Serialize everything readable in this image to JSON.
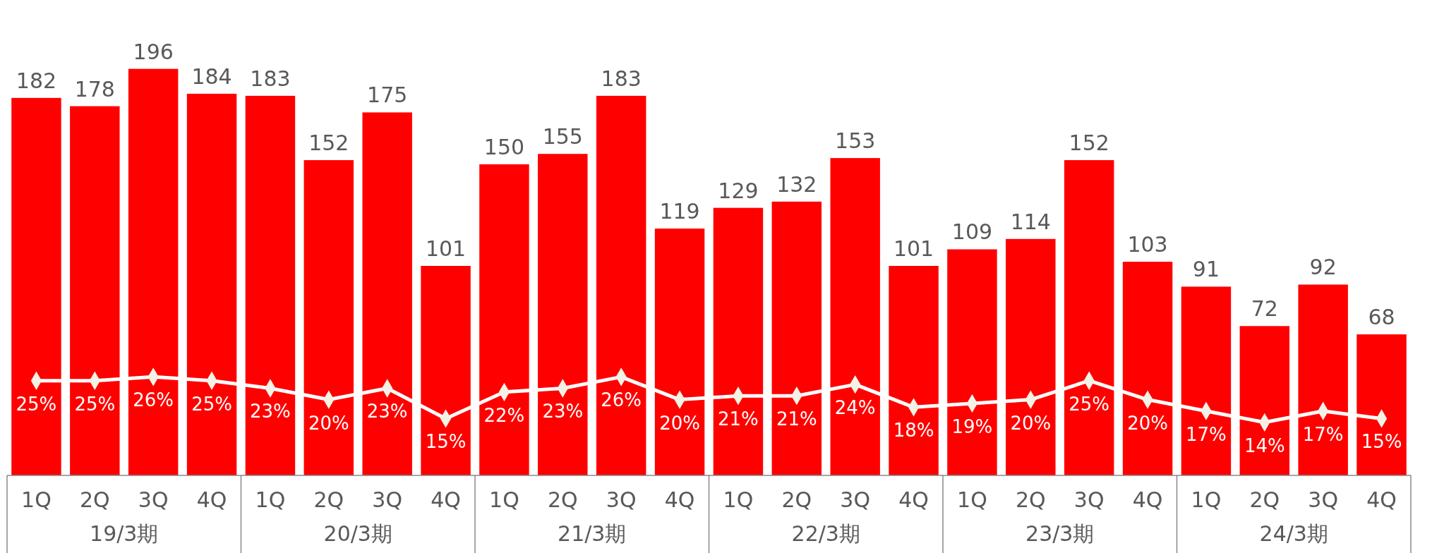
{
  "chart_data": {
    "type": "bar",
    "categories": [
      "1Q",
      "2Q",
      "3Q",
      "4Q",
      "1Q",
      "2Q",
      "3Q",
      "4Q",
      "1Q",
      "2Q",
      "3Q",
      "4Q",
      "1Q",
      "2Q",
      "3Q",
      "4Q",
      "1Q",
      "2Q",
      "3Q",
      "4Q",
      "1Q",
      "2Q",
      "3Q",
      "4Q"
    ],
    "series": [
      {
        "color": "#ff0000",
        "values": [
          182,
          178,
          196,
          184,
          183,
          152,
          175,
          101,
          150,
          155,
          183,
          119,
          129,
          132,
          153,
          101,
          109,
          114,
          152,
          103,
          91,
          72,
          92,
          68
        ]
      },
      {
        "type": "line",
        "axis": "y2",
        "color": "#ffffff",
        "marker": "diamond",
        "values": [
          25,
          25,
          26,
          25,
          23,
          20,
          23,
          15,
          22,
          23,
          26,
          20,
          21,
          21,
          24,
          18,
          19,
          20,
          25,
          20,
          17,
          14,
          17,
          15
        ],
        "value_labels": [
          "25%",
          "25%",
          "26%",
          "25%",
          "23%",
          "20%",
          "23%",
          "15%",
          "22%",
          "23%",
          "26%",
          "20%",
          "21%",
          "21%",
          "24%",
          "18%",
          "19%",
          "20%",
          "25%",
          "20%",
          "17%",
          "14%",
          "17%",
          "15%"
        ]
      }
    ],
    "data_labels": true,
    "tick_labels": "x",
    "annotations": [
      "19/3期",
      "20/3期",
      "21/3期",
      "22/3期",
      "23/3期",
      "24/3期"
    ]
  }
}
